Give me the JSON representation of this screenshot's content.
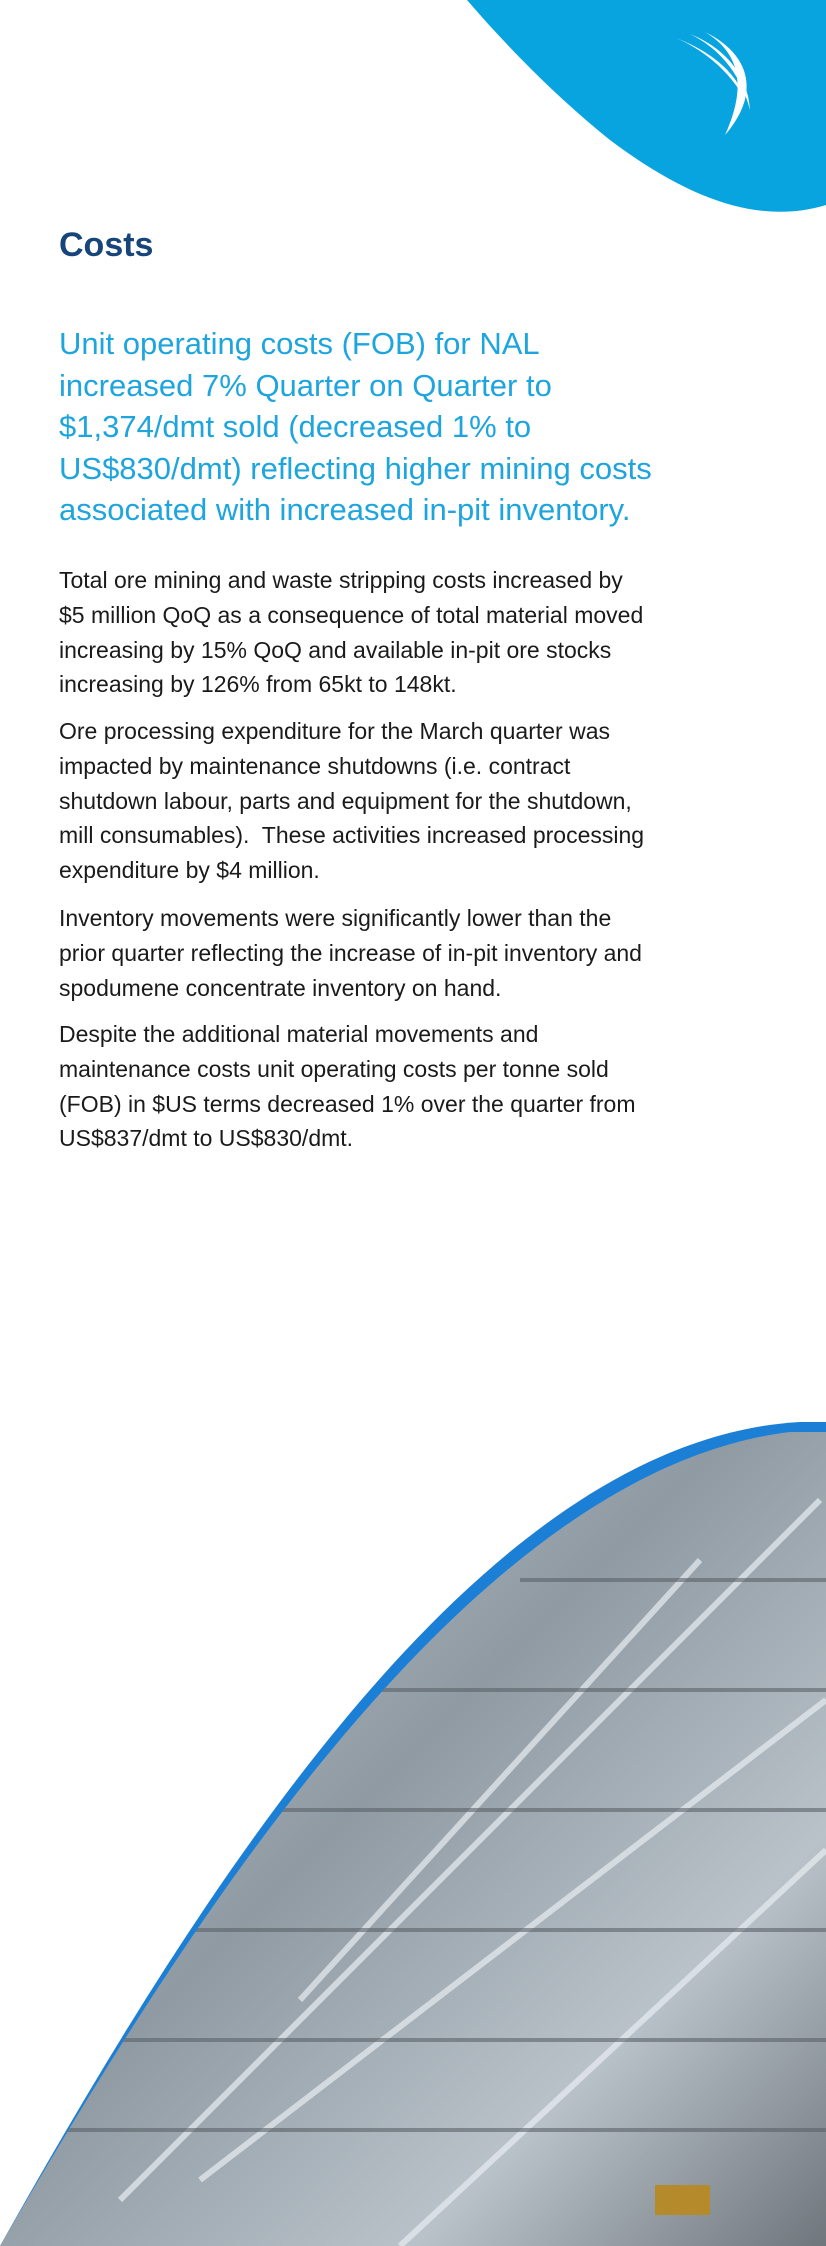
{
  "heading": "Costs",
  "lead": {
    "lines": [
      "Unit operating costs (FOB) for NAL",
      "increased 7% Quarter on Quarter to",
      "$1,374/dmt sold (decreased 1% to",
      "US$830/dmt) reflecting higher mining costs",
      "associated with increased in-pit inventory."
    ]
  },
  "paragraphs": [
    {
      "lines": [
        "Total ore mining and waste stripping costs increased by",
        "$5 million QoQ as a consequence of total material moved",
        "increasing by 15% QoQ and available in-pit ore stocks",
        "increasing by 126% from 65kt to 148kt."
      ]
    },
    {
      "lines": [
        "Ore processing expenditure for the March quarter was",
        "impacted by maintenance shutdowns (i.e. contract",
        "shutdown labour, parts and equipment for the shutdown,",
        "mill consumables).  These activities increased processing",
        "expenditure by $4 million."
      ]
    },
    {
      "lines": [
        "Inventory movements were significantly lower than the",
        "prior quarter reflecting the increase of in-pit inventory and",
        "spodumene concentrate inventory on hand."
      ]
    },
    {
      "lines": [
        "Despite the additional material movements and",
        "maintenance costs unit operating costs per tonne sold",
        "(FOB) in $US terms decreased 1% over the quarter from",
        "US$837/dmt to US$830/dmt."
      ]
    }
  ]
}
